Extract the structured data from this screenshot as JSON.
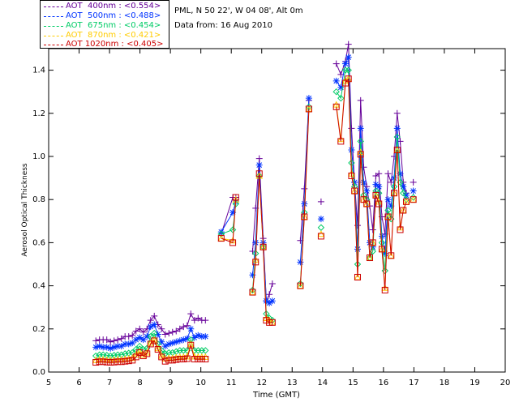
{
  "info": {
    "location": "PML, N 50 22', W 04 08', Alt 0m",
    "date": "Data from: 16 Aug 2010"
  },
  "chart_data": {
    "type": "line",
    "xlabel": "Time (GMT)",
    "ylabel": "Aerosol Optical Thickness",
    "xlim": [
      5,
      20
    ],
    "ylim": [
      0,
      1.5
    ],
    "xticks": [
      5,
      6,
      7,
      8,
      9,
      10,
      11,
      12,
      13,
      14,
      15,
      16,
      17,
      18,
      19,
      20
    ],
    "yticks": [
      0.0,
      0.2,
      0.4,
      0.6,
      0.8,
      1.0,
      1.2,
      1.4
    ],
    "ytick_labels": [
      "0.0",
      "0.2",
      "0.4",
      "0.6",
      "0.8",
      "1.0",
      "1.2",
      "1.4"
    ],
    "grid": false,
    "legend_position": "top-left",
    "series": [
      {
        "name": "AOT  400nm : <0.554>",
        "color": "#660099",
        "marker": "plus",
        "segments": [
          {
            "x": [
              6.55,
              6.67,
              6.79,
              6.91,
              7.03,
              7.15,
              7.27,
              7.39,
              7.51,
              7.63,
              7.75,
              7.87,
              7.99,
              8.11,
              8.23,
              8.35,
              8.47,
              8.59,
              8.71,
              8.83,
              8.95,
              9.07,
              9.19,
              9.31,
              9.43,
              9.55,
              9.67,
              9.79,
              9.91,
              10.03,
              10.15
            ],
            "y": [
              0.145,
              0.15,
              0.15,
              0.15,
              0.14,
              0.145,
              0.15,
              0.155,
              0.165,
              0.165,
              0.17,
              0.19,
              0.2,
              0.185,
              0.2,
              0.24,
              0.26,
              0.22,
              0.2,
              0.175,
              0.18,
              0.185,
              0.19,
              0.2,
              0.21,
              0.215,
              0.27,
              0.24,
              0.25,
              0.24,
              0.24
            ]
          },
          {
            "x": [
              10.67,
              11.05,
              11.15
            ],
            "y": [
              0.64,
              0.81,
              0.81
            ]
          },
          {
            "x": [
              11.7,
              11.8,
              11.92,
              12.05,
              12.15,
              12.25,
              12.35
            ],
            "y": [
              0.56,
              0.76,
              0.99,
              0.62,
              0.33,
              0.36,
              0.41
            ]
          },
          {
            "x": [
              13.27,
              13.4,
              13.55
            ],
            "y": [
              0.61,
              0.85,
              1.26
            ]
          },
          {
            "x": [
              13.95
            ],
            "y": [
              0.79
            ]
          },
          {
            "x": [
              14.45,
              14.6,
              14.75,
              14.85,
              14.95,
              15.05,
              15.15,
              15.25,
              15.35,
              15.45,
              15.55,
              15.65,
              15.75,
              15.85,
              15.95,
              16.05,
              16.15,
              16.25,
              16.35,
              16.45,
              16.55,
              16.65,
              16.75
            ],
            "y": [
              1.43,
              1.38,
              1.44,
              1.52,
              1.13,
              0.88,
              0.68,
              1.26,
              0.95,
              0.86,
              0.77,
              0.66,
              0.91,
              0.92,
              0.72,
              0.64,
              0.92,
              0.88,
              1.0,
              1.2,
              1.07,
              0.88,
              0.83
            ]
          },
          {
            "x": [
              16.98
            ],
            "y": [
              0.88
            ]
          }
        ]
      },
      {
        "name": "AOT  500nm : <0.488>",
        "color": "#0033ff",
        "marker": "star",
        "segments": [
          {
            "x": [
              6.55,
              6.67,
              6.79,
              6.91,
              7.03,
              7.15,
              7.27,
              7.39,
              7.51,
              7.63,
              7.75,
              7.87,
              7.99,
              8.11,
              8.23,
              8.35,
              8.47,
              8.59,
              8.71,
              8.83,
              8.95,
              9.07,
              9.19,
              9.31,
              9.43,
              9.55,
              9.67,
              9.79,
              9.91,
              10.03,
              10.15
            ],
            "y": [
              0.115,
              0.12,
              0.115,
              0.115,
              0.11,
              0.115,
              0.12,
              0.12,
              0.13,
              0.13,
              0.135,
              0.15,
              0.16,
              0.15,
              0.165,
              0.21,
              0.22,
              0.175,
              0.14,
              0.12,
              0.13,
              0.135,
              0.14,
              0.145,
              0.15,
              0.155,
              0.2,
              0.16,
              0.17,
              0.165,
              0.165
            ]
          },
          {
            "x": [
              10.67,
              11.05,
              11.15
            ],
            "y": [
              0.65,
              0.74,
              0.79
            ]
          },
          {
            "x": [
              11.7,
              11.8,
              11.92,
              12.05,
              12.15,
              12.25,
              12.35
            ],
            "y": [
              0.45,
              0.6,
              0.96,
              0.6,
              0.33,
              0.32,
              0.33
            ]
          },
          {
            "x": [
              13.27,
              13.4,
              13.55
            ],
            "y": [
              0.51,
              0.78,
              1.27
            ]
          },
          {
            "x": [
              13.95
            ],
            "y": [
              0.71
            ]
          },
          {
            "x": [
              14.45,
              14.6,
              14.75,
              14.85,
              14.95,
              15.05,
              15.15,
              15.25,
              15.35,
              15.45,
              15.55,
              15.65,
              15.75,
              15.85,
              15.95,
              16.05,
              16.15,
              16.25,
              16.35,
              16.45,
              16.55,
              16.65,
              16.75
            ],
            "y": [
              1.35,
              1.32,
              1.43,
              1.46,
              1.03,
              0.88,
              0.57,
              1.13,
              0.88,
              0.84,
              0.6,
              0.58,
              0.87,
              0.86,
              0.63,
              0.55,
              0.8,
              0.77,
              0.9,
              1.13,
              0.92,
              0.86,
              0.82
            ]
          },
          {
            "x": [
              16.98
            ],
            "y": [
              0.84
            ]
          }
        ]
      },
      {
        "name": "AOT  675nm : <0.454>",
        "color": "#00cc66",
        "marker": "diamond",
        "segments": [
          {
            "x": [
              6.55,
              6.67,
              6.79,
              6.91,
              7.03,
              7.15,
              7.27,
              7.39,
              7.51,
              7.63,
              7.75,
              7.87,
              7.99,
              8.11,
              8.23,
              8.35,
              8.47,
              8.59,
              8.71,
              8.83,
              8.95,
              9.07,
              9.19,
              9.31,
              9.43,
              9.55,
              9.67,
              9.79,
              9.91,
              10.03,
              10.15
            ],
            "y": [
              0.075,
              0.08,
              0.08,
              0.078,
              0.075,
              0.078,
              0.08,
              0.08,
              0.085,
              0.088,
              0.09,
              0.105,
              0.12,
              0.105,
              0.11,
              0.165,
              0.18,
              0.13,
              0.1,
              0.085,
              0.09,
              0.09,
              0.095,
              0.1,
              0.1,
              0.1,
              0.15,
              0.1,
              0.1,
              0.1,
              0.1
            ]
          },
          {
            "x": [
              10.67,
              11.05,
              11.15
            ],
            "y": [
              0.64,
              0.66,
              0.78
            ]
          },
          {
            "x": [
              11.7,
              11.8,
              11.92,
              12.05,
              12.15,
              12.25,
              12.35
            ],
            "y": [
              0.38,
              0.55,
              0.91,
              0.58,
              0.27,
              0.25,
              0.24
            ]
          },
          {
            "x": [
              13.27,
              13.4,
              13.55
            ],
            "y": [
              0.41,
              0.74,
              1.23
            ]
          },
          {
            "x": [
              13.95
            ],
            "y": [
              0.67
            ]
          },
          {
            "x": [
              14.45,
              14.6,
              14.75,
              14.85,
              14.95,
              15.05,
              15.15,
              15.25,
              15.35,
              15.45,
              15.55,
              15.65,
              15.75,
              15.85,
              15.95,
              16.05,
              16.15,
              16.25,
              16.35,
              16.45,
              16.55,
              16.65,
              16.75
            ],
            "y": [
              1.3,
              1.27,
              1.4,
              1.4,
              0.97,
              0.86,
              0.5,
              1.07,
              0.82,
              0.8,
              0.53,
              0.56,
              0.84,
              0.83,
              0.6,
              0.47,
              0.75,
              0.71,
              0.86,
              1.09,
              0.88,
              0.83,
              0.8
            ]
          },
          {
            "x": [
              16.98
            ],
            "y": [
              0.81
            ]
          }
        ]
      },
      {
        "name": "AOT  870nm : <0.421>",
        "color": "#ffcc00",
        "marker": "triangle",
        "segments": [
          {
            "x": [
              6.55,
              6.67,
              6.79,
              6.91,
              7.03,
              7.15,
              7.27,
              7.39,
              7.51,
              7.63,
              7.75,
              7.87,
              7.99,
              8.11,
              8.23,
              8.35,
              8.47,
              8.59,
              8.71,
              8.83,
              8.95,
              9.07,
              9.19,
              9.31,
              9.43,
              9.55,
              9.67,
              9.79,
              9.91,
              10.03,
              10.15
            ],
            "y": [
              0.055,
              0.058,
              0.058,
              0.056,
              0.055,
              0.056,
              0.058,
              0.058,
              0.06,
              0.062,
              0.065,
              0.08,
              0.095,
              0.08,
              0.09,
              0.135,
              0.15,
              0.11,
              0.075,
              0.062,
              0.065,
              0.065,
              0.068,
              0.07,
              0.07,
              0.072,
              0.13,
              0.072,
              0.07,
              0.07,
              0.07
            ]
          },
          {
            "x": [
              10.67,
              11.05,
              11.15
            ],
            "y": [
              0.62,
              0.61,
              0.8
            ]
          },
          {
            "x": [
              11.7,
              11.8,
              11.92,
              12.05,
              12.15,
              12.25,
              12.35
            ],
            "y": [
              0.37,
              0.52,
              0.91,
              0.58,
              0.25,
              0.24,
              0.23
            ]
          },
          {
            "x": [
              13.27,
              13.4,
              13.55
            ],
            "y": [
              0.4,
              0.72,
              1.22
            ]
          },
          {
            "x": [
              13.95
            ],
            "y": [
              0.64
            ]
          },
          {
            "x": [
              14.45,
              14.6,
              14.75,
              14.85,
              14.95,
              15.05,
              15.15,
              15.25,
              15.35,
              15.45,
              15.55,
              15.65,
              15.75,
              15.85,
              15.95,
              16.05,
              16.15,
              16.25,
              16.35,
              16.45,
              16.55,
              16.65,
              16.75
            ],
            "y": [
              1.24,
              1.08,
              1.35,
              1.36,
              0.92,
              0.84,
              0.44,
              1.02,
              0.8,
              0.78,
              0.53,
              0.6,
              0.82,
              0.79,
              0.57,
              0.39,
              0.72,
              0.54,
              0.83,
              1.03,
              0.67,
              0.75,
              0.79
            ]
          },
          {
            "x": [
              16.98
            ],
            "y": [
              0.8
            ]
          }
        ]
      },
      {
        "name": "AOT 1020nm : <0.405>",
        "color": "#cc0000",
        "marker": "square",
        "segments": [
          {
            "x": [
              6.55,
              6.67,
              6.79,
              6.91,
              7.03,
              7.15,
              7.27,
              7.39,
              7.51,
              7.63,
              7.75,
              7.87,
              7.99,
              8.11,
              8.23,
              8.35,
              8.47,
              8.59,
              8.71,
              8.83,
              8.95,
              9.07,
              9.19,
              9.31,
              9.43,
              9.55,
              9.67,
              9.79,
              9.91,
              10.03,
              10.15
            ],
            "y": [
              0.045,
              0.048,
              0.048,
              0.046,
              0.045,
              0.046,
              0.048,
              0.048,
              0.05,
              0.052,
              0.055,
              0.07,
              0.09,
              0.075,
              0.085,
              0.13,
              0.145,
              0.105,
              0.07,
              0.05,
              0.055,
              0.055,
              0.058,
              0.06,
              0.06,
              0.062,
              0.125,
              0.06,
              0.06,
              0.06,
              0.06
            ]
          },
          {
            "x": [
              10.67,
              11.05,
              11.15
            ],
            "y": [
              0.62,
              0.6,
              0.81
            ]
          },
          {
            "x": [
              11.7,
              11.8,
              11.92,
              12.05,
              12.15,
              12.25,
              12.35
            ],
            "y": [
              0.37,
              0.51,
              0.92,
              0.58,
              0.24,
              0.23,
              0.23
            ]
          },
          {
            "x": [
              13.27,
              13.4,
              13.55
            ],
            "y": [
              0.4,
              0.72,
              1.22
            ]
          },
          {
            "x": [
              13.95
            ],
            "y": [
              0.63
            ]
          },
          {
            "x": [
              14.45,
              14.6,
              14.75,
              14.85,
              14.95,
              15.05,
              15.15,
              15.25,
              15.35,
              15.45,
              15.55,
              15.65,
              15.75,
              15.85,
              15.95,
              16.05,
              16.15,
              16.25,
              16.35,
              16.45,
              16.55,
              16.65,
              16.75
            ],
            "y": [
              1.23,
              1.07,
              1.34,
              1.36,
              0.91,
              0.84,
              0.44,
              1.01,
              0.8,
              0.78,
              0.53,
              0.6,
              0.82,
              0.78,
              0.57,
              0.38,
              0.72,
              0.54,
              0.83,
              1.03,
              0.66,
              0.75,
              0.79
            ]
          },
          {
            "x": [
              16.98
            ],
            "y": [
              0.8
            ]
          }
        ]
      }
    ]
  }
}
